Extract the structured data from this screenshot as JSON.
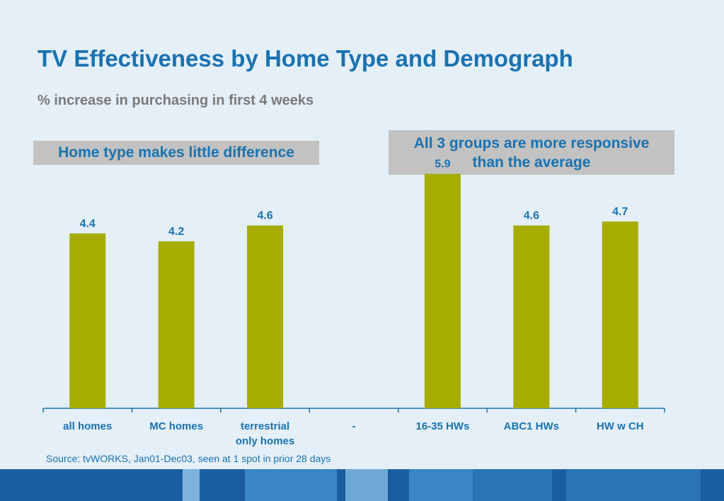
{
  "header": {
    "title": "TV Effectiveness by Home Type and Demograph",
    "subtitle": "% increase in purchasing in first 4 weeks"
  },
  "callouts": {
    "left": "Home type makes little difference",
    "right_line1": "All 3 groups are more responsive",
    "right_line2": "than the average"
  },
  "footer": {
    "source": "Source: tvWORKS, Jan01-Dec03, seen at 1 spot in prior 28 days"
  },
  "colors": {
    "bar": "#a6ad00",
    "title": "#1a72b0",
    "label": "#1a72b0",
    "axis": "#1a72b0"
  },
  "chart_data": {
    "type": "bar",
    "title": "TV Effectiveness by Home Type and Demograph",
    "subtitle": "% increase in purchasing in first 4 weeks",
    "categories": [
      [
        "all homes"
      ],
      [
        "MC homes"
      ],
      [
        "terrestrial",
        "only homes"
      ],
      [
        "-"
      ],
      [
        "16-35 HWs"
      ],
      [
        "ABC1 HWs"
      ],
      [
        "HW w CH"
      ]
    ],
    "values": [
      4.4,
      4.2,
      4.6,
      null,
      5.9,
      4.6,
      4.7
    ],
    "value_labels": [
      "4.4",
      "4.2",
      "4.6",
      "",
      "5.9",
      "4.6",
      "4.7"
    ],
    "ylim": [
      0,
      6
    ],
    "grid": false,
    "legend": "none"
  }
}
